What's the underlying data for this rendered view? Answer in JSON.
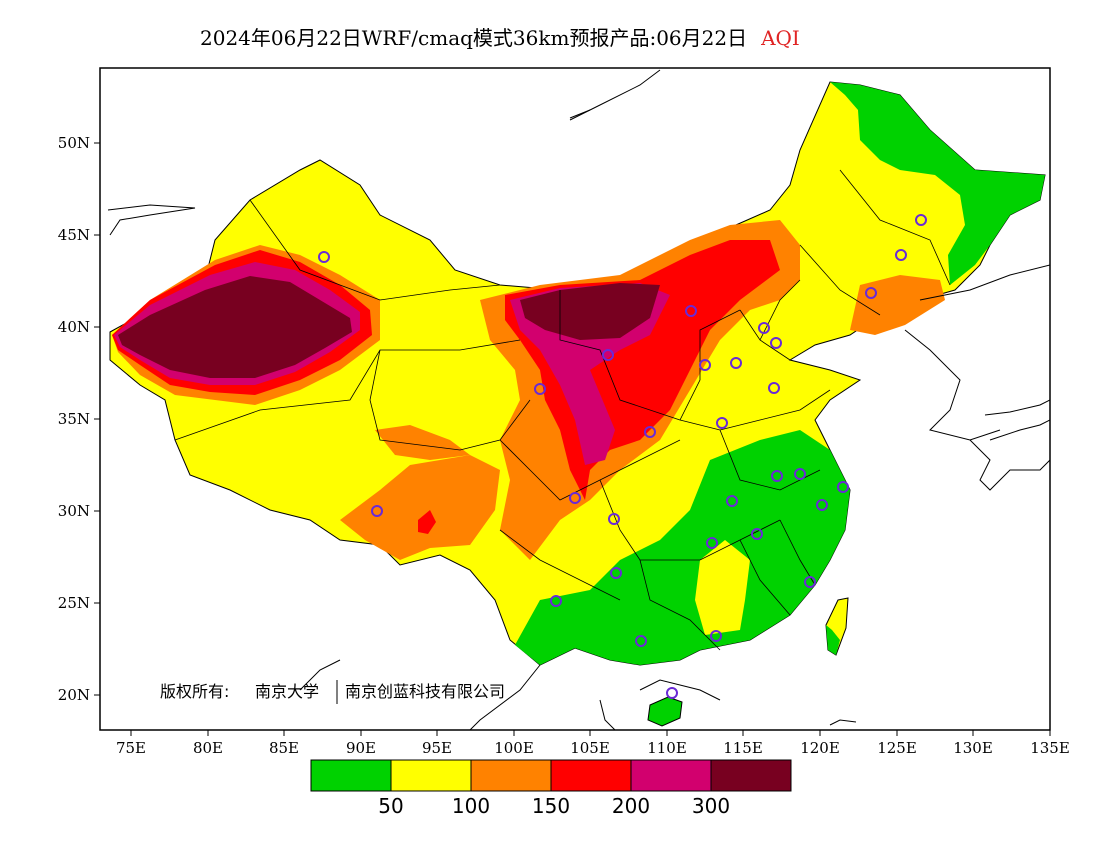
{
  "title": {
    "main": "2024年06月22日WRF/cmaq模式36km预报产品:06月22日",
    "product": "AQI",
    "product_color": "#e02424"
  },
  "axes": {
    "y_ticks": [
      "50N",
      "45N",
      "40N",
      "35N",
      "30N",
      "25N",
      "20N"
    ],
    "x_ticks": [
      "75E",
      "80E",
      "85E",
      "90E",
      "95E",
      "100E",
      "105E",
      "110E",
      "115E",
      "120E",
      "125E",
      "130E",
      "135E"
    ],
    "lon_range": [
      73,
      135
    ],
    "lat_range": [
      18,
      54
    ]
  },
  "copyright": {
    "prefix": "版权所有:",
    "org1": "南京大学",
    "org2": "南京创蓝科技有限公司"
  },
  "legend": {
    "colors": [
      "#00d200",
      "#ffff00",
      "#ff8200",
      "#ff0000",
      "#d2006e",
      "#780020"
    ],
    "labels": [
      "50",
      "100",
      "150",
      "200",
      "300"
    ]
  },
  "monitoring_site_count": 27
}
